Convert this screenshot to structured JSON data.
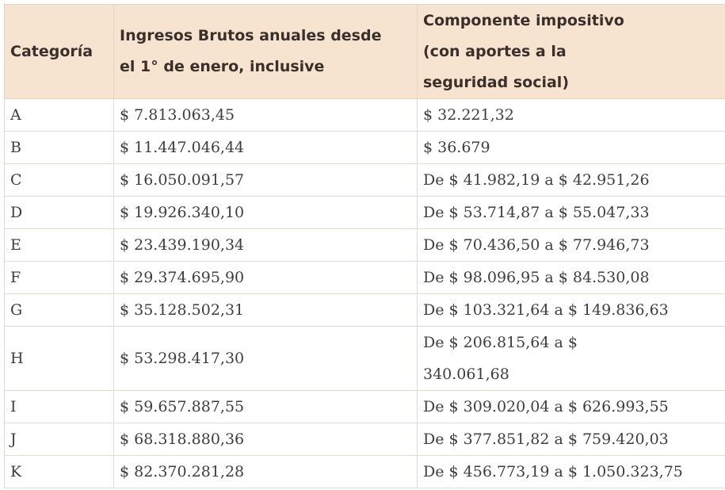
{
  "header": {
    "category": "Categoría",
    "gross_income": "Ingresos Brutos anuales desde el 1° de enero, inclusive",
    "tax_component": "Componente impositivo (con aportes a la seguridad social)"
  },
  "rows": [
    {
      "category": "A",
      "income": "$ 7.813.063,45",
      "tax": "$ 32.221,32"
    },
    {
      "category": "B",
      "income": "$ 11.447.046,44",
      "tax": "$ 36.679"
    },
    {
      "category": "C",
      "income": "$ 16.050.091,57",
      "tax": "De $ 41.982,19 a $ 42.951,26"
    },
    {
      "category": "D",
      "income": "$ 19.926.340,10",
      "tax": "De $ 53.714,87 a $ 55.047,33"
    },
    {
      "category": "E",
      "income": "$ 23.439.190,34",
      "tax": "De $ 70.436,50 a $ 77.946,73"
    },
    {
      "category": "F",
      "income": "$ 29.374.695,90",
      "tax": "De $ 98.096,95 a $ 84.530,08"
    },
    {
      "category": "G",
      "income": "$ 35.128.502,31",
      "tax": "De $ 103.321,64 a $ 149.836,63"
    },
    {
      "category": "H",
      "income": "$ 53.298.417,30",
      "tax": "De $ 206.815,64 a $ 340.061,68"
    },
    {
      "category": "I",
      "income": "$ 59.657.887,55",
      "tax": "De $ 309.020,04 a $ 626.993,55"
    },
    {
      "category": "J",
      "income": "$ 68.318.880,36",
      "tax": "De $ 377.851,82 a $ 759.420,03"
    },
    {
      "category": "K",
      "income": "$ 82.370.281,28",
      "tax": "De $ 456.773,19 a $ 1.050.323,75"
    }
  ]
}
